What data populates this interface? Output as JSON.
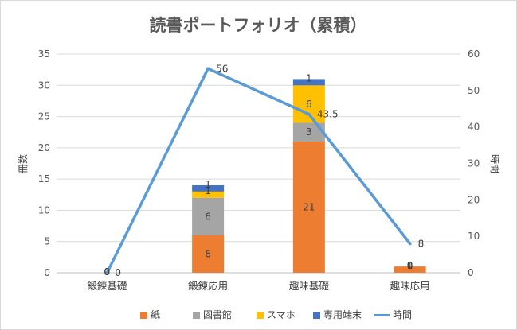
{
  "chart_data": {
    "type": "bar",
    "stacked": true,
    "title": "読書ポートフォリオ（累積）",
    "categories": [
      "鍛錬基礎",
      "鍛錬応用",
      "趣味基礎",
      "趣味応用"
    ],
    "series": [
      {
        "name": "紙",
        "values": [
          0,
          6,
          21,
          1
        ],
        "color": "#ed7d31"
      },
      {
        "name": "図書館",
        "values": [
          0,
          6,
          3,
          0
        ],
        "color": "#a5a5a5"
      },
      {
        "name": "スマホ",
        "values": [
          0,
          1,
          6,
          0
        ],
        "color": "#ffc000"
      },
      {
        "name": "専用端末",
        "values": [
          0,
          1,
          1,
          0
        ],
        "color": "#4472c4"
      }
    ],
    "line_series": {
      "name": "時間",
      "values": [
        0,
        56,
        43.5,
        8
      ],
      "color": "#5b9bd5"
    },
    "ylabel": "冊数",
    "y2label": "時間",
    "ylim": [
      0,
      35
    ],
    "y_ticks": [
      0,
      5,
      10,
      15,
      20,
      25,
      30,
      35
    ],
    "y2lim": [
      0,
      60
    ],
    "y2_ticks": [
      0,
      10,
      20,
      30,
      40,
      50,
      60
    ],
    "grid": true,
    "legend_position": "bottom"
  }
}
